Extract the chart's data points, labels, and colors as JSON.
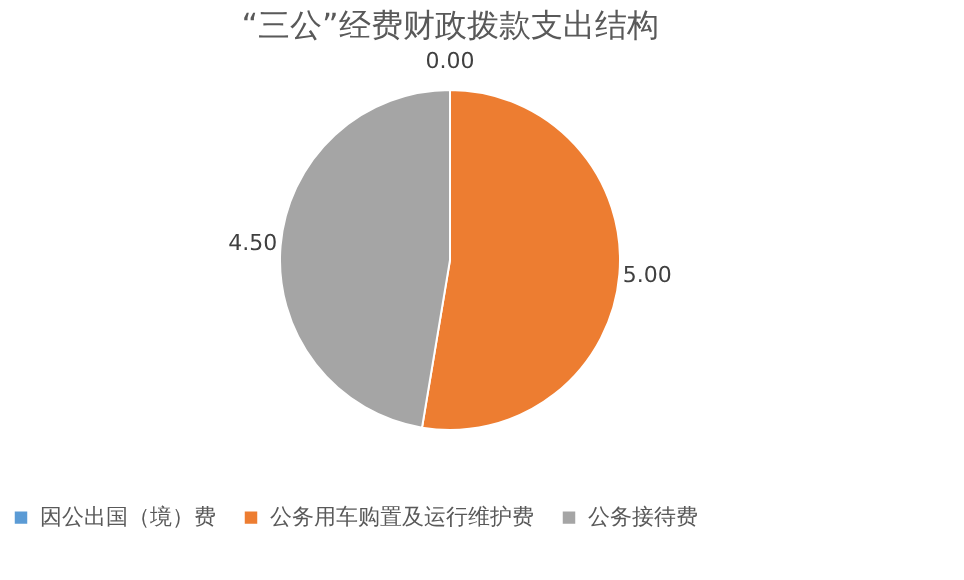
{
  "chart_data": {
    "type": "pie",
    "title": "“三公”经费财政拨款支出结构",
    "categories": [
      "因公出国（境）费",
      "公务用车购置及运行维护费",
      "公务接待费"
    ],
    "values": [
      0.0,
      5.0,
      4.5
    ],
    "colors": [
      "#5b9bd5",
      "#ed7d31",
      "#a5a5a5"
    ],
    "value_labels": [
      "0.00",
      "5.00",
      "4.50"
    ],
    "legend": "bottom"
  }
}
